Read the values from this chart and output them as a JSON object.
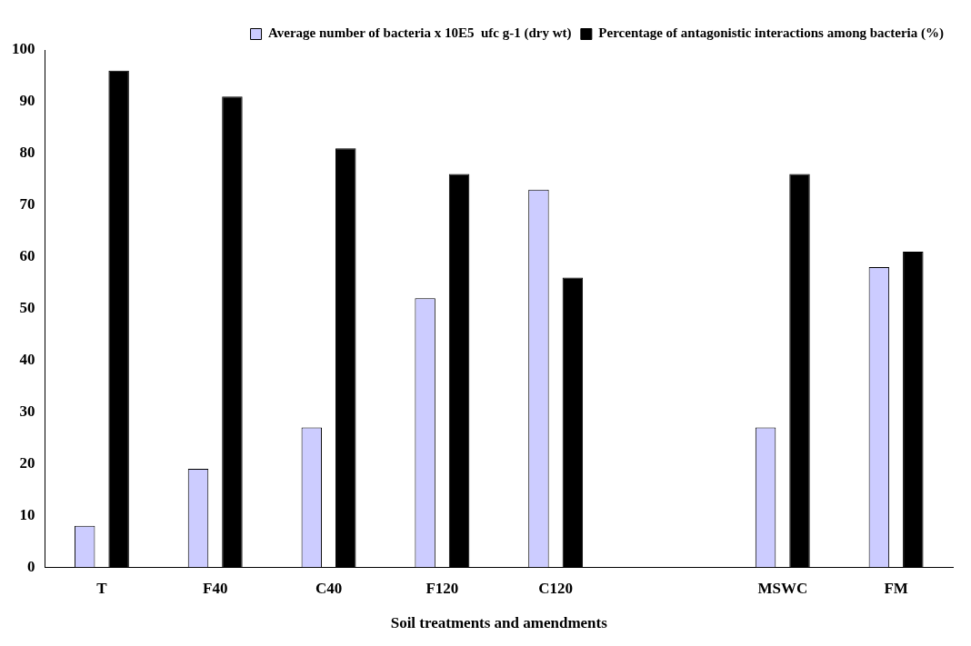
{
  "chart_data": {
    "type": "bar",
    "xlabel": "Soil treatments and amendments",
    "categories": [
      "T",
      "F40",
      "C40",
      "F120",
      "C120",
      null,
      "MSWC",
      "FM"
    ],
    "series": [
      {
        "name": "Average number of bacteria x 10E5  ufc g-1 (dry wt)",
        "color": "#ccccff",
        "values": [
          8,
          19,
          27,
          52,
          73,
          null,
          27,
          58
        ]
      },
      {
        "name": "Percentage of antagonistic interactions among bacteria (%)",
        "color": "#000000",
        "values": [
          96,
          91,
          81,
          76,
          56,
          null,
          76,
          61
        ]
      }
    ],
    "ylim": [
      0,
      100
    ],
    "yticks": [
      0,
      10,
      20,
      30,
      40,
      50,
      60,
      70,
      80,
      90,
      100
    ],
    "grid": false,
    "legend": "top right"
  }
}
